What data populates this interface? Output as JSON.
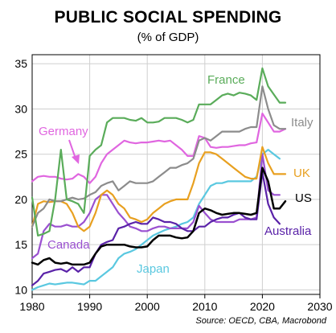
{
  "chart_data": {
    "type": "line",
    "title": "PUBLIC SOCIAL SPENDING",
    "subtitle": "(% of GDP)",
    "source": "Source: OECD, CBA, Macrobond",
    "xlim": [
      1980,
      2030
    ],
    "ylim": [
      9.5,
      36
    ],
    "xticks": [
      "1980",
      "1990",
      "2000",
      "2010",
      "2020",
      "2030"
    ],
    "yticks": [
      "10",
      "15",
      "20",
      "25",
      "30",
      "35"
    ],
    "grid": "both",
    "series": [
      {
        "name": "France",
        "color": "#5aac5a",
        "x": [
          1980,
          1981,
          1982,
          1983,
          1984,
          1985,
          1986,
          1987,
          1988,
          1989,
          1990,
          1991,
          1992,
          1993,
          1994,
          1995,
          1996,
          1997,
          1998,
          1999,
          2000,
          2001,
          2002,
          2003,
          2004,
          2005,
          2006,
          2007,
          2008,
          2009,
          2010,
          2011,
          2012,
          2013,
          2014,
          2015,
          2016,
          2017,
          2018,
          2019,
          2020,
          2021,
          2022,
          2023,
          2024
        ],
        "y": [
          20.2,
          16.0,
          16.2,
          16.5,
          20.0,
          25.5,
          20.0,
          19.8,
          19.5,
          18.5,
          24.8,
          25.5,
          26.0,
          28.5,
          29.0,
          29.0,
          29.0,
          28.8,
          28.7,
          29.0,
          28.5,
          28.5,
          28.6,
          29.0,
          29.0,
          29.0,
          28.8,
          28.5,
          28.8,
          30.5,
          30.5,
          30.5,
          31.0,
          31.5,
          31.7,
          31.5,
          31.8,
          31.7,
          31.5,
          31.0,
          34.5,
          32.5,
          31.6,
          30.7,
          30.7
        ]
      },
      {
        "name": "Italy",
        "color": "#8c8c8c",
        "x": [
          1980,
          1981,
          1982,
          1983,
          1984,
          1985,
          1986,
          1987,
          1988,
          1989,
          1990,
          1991,
          1992,
          1993,
          1994,
          1995,
          1996,
          1997,
          1998,
          1999,
          2000,
          2001,
          2002,
          2003,
          2004,
          2005,
          2006,
          2007,
          2008,
          2009,
          2010,
          2011,
          2012,
          2013,
          2014,
          2015,
          2016,
          2017,
          2018,
          2019,
          2020,
          2021,
          2022,
          2023,
          2024
        ],
        "y": [
          17.0,
          18.5,
          19.0,
          20.0,
          19.8,
          19.8,
          20.0,
          20.2,
          20.0,
          20.1,
          20.5,
          20.8,
          21.5,
          21.8,
          22.0,
          21.0,
          21.5,
          22.0,
          21.8,
          21.8,
          21.8,
          22.0,
          22.5,
          23.0,
          23.5,
          23.5,
          23.8,
          24.0,
          24.5,
          26.5,
          26.8,
          26.5,
          27.0,
          27.5,
          27.5,
          27.5,
          27.5,
          27.8,
          28.0,
          28.0,
          32.5,
          30.0,
          28.2,
          27.8,
          27.8
        ]
      },
      {
        "name": "Germany",
        "color": "#e066e0",
        "x": [
          1980,
          1981,
          1982,
          1983,
          1984,
          1985,
          1986,
          1987,
          1988,
          1989,
          1990,
          1991,
          1992,
          1993,
          1994,
          1995,
          1996,
          1997,
          1998,
          1999,
          2000,
          2001,
          2002,
          2003,
          2004,
          2005,
          2006,
          2007,
          2008,
          2009,
          2010,
          2011,
          2012,
          2013,
          2014,
          2015,
          2016,
          2017,
          2018,
          2019,
          2020,
          2021,
          2022,
          2023,
          2024
        ],
        "y": [
          22.0,
          22.5,
          22.6,
          22.5,
          22.5,
          22.3,
          22.2,
          22.3,
          22.8,
          22.5,
          21.8,
          22.5,
          24.0,
          25.0,
          25.5,
          26.0,
          26.5,
          26.3,
          26.2,
          26.3,
          26.3,
          26.4,
          26.5,
          26.4,
          26.5,
          26.0,
          25.5,
          24.8,
          24.8,
          27.0,
          26.8,
          25.8,
          25.7,
          25.8,
          25.8,
          25.9,
          26.0,
          26.0,
          26.2,
          26.3,
          29.5,
          28.5,
          27.5,
          27.5,
          27.8
        ]
      },
      {
        "name": "UK",
        "color": "#e8a020",
        "x": [
          1980,
          1981,
          1982,
          1983,
          1984,
          1985,
          1986,
          1987,
          1988,
          1989,
          1990,
          1991,
          1992,
          1993,
          1994,
          1995,
          1996,
          1997,
          1998,
          1999,
          2000,
          2001,
          2002,
          2003,
          2004,
          2005,
          2006,
          2007,
          2008,
          2009,
          2010,
          2011,
          2012,
          2013,
          2014,
          2015,
          2016,
          2017,
          2018,
          2019,
          2020,
          2021,
          2022,
          2023,
          2024
        ],
        "y": [
          17.0,
          19.5,
          19.8,
          19.7,
          19.8,
          19.8,
          19.5,
          18.5,
          17.0,
          16.5,
          17.0,
          18.5,
          20.5,
          21.0,
          20.5,
          19.5,
          19.0,
          18.0,
          17.8,
          17.5,
          17.8,
          18.5,
          19.0,
          19.5,
          19.8,
          20.0,
          20.0,
          20.0,
          21.8,
          24.0,
          25.2,
          25.2,
          25.0,
          24.5,
          24.0,
          23.5,
          23.0,
          22.5,
          22.3,
          22.3,
          25.8,
          24.0,
          22.8,
          22.8,
          22.8
        ]
      },
      {
        "name": "US",
        "color": "#000000",
        "x": [
          1980,
          1981,
          1982,
          1983,
          1984,
          1985,
          1986,
          1987,
          1988,
          1989,
          1990,
          1991,
          1992,
          1993,
          1994,
          1995,
          1996,
          1997,
          1998,
          1999,
          2000,
          2001,
          2002,
          2003,
          2004,
          2005,
          2006,
          2007,
          2008,
          2009,
          2010,
          2011,
          2012,
          2013,
          2014,
          2015,
          2016,
          2017,
          2018,
          2019,
          2020,
          2021,
          2022,
          2023,
          2024
        ],
        "y": [
          13.0,
          12.8,
          13.3,
          13.5,
          13.0,
          12.9,
          13.0,
          12.8,
          12.8,
          12.8,
          13.0,
          14.0,
          14.8,
          15.0,
          15.0,
          15.0,
          15.0,
          14.8,
          14.7,
          14.7,
          14.8,
          15.5,
          16.0,
          16.0,
          16.0,
          15.8,
          15.7,
          15.8,
          16.5,
          18.5,
          19.0,
          18.8,
          18.5,
          18.3,
          18.4,
          18.5,
          18.5,
          18.4,
          18.3,
          18.5,
          23.5,
          22.0,
          19.0,
          19.0,
          19.8
        ]
      },
      {
        "name": "Australia",
        "color": "#5a22a8",
        "x": [
          1980,
          1981,
          1982,
          1983,
          1984,
          1985,
          1986,
          1987,
          1988,
          1989,
          1990,
          1991,
          1992,
          1993,
          1994,
          1995,
          1996,
          1997,
          1998,
          1999,
          2000,
          2001,
          2002,
          2003,
          2004,
          2005,
          2006,
          2007,
          2008,
          2009,
          2010,
          2011,
          2012,
          2013,
          2014,
          2015,
          2016,
          2017,
          2018,
          2019,
          2020,
          2021,
          2022,
          2023
        ],
        "y": [
          10.5,
          11.0,
          11.8,
          12.0,
          12.2,
          12.3,
          12.0,
          12.5,
          12.0,
          12.5,
          12.5,
          14.0,
          15.0,
          15.3,
          15.5,
          16.8,
          17.0,
          17.3,
          17.5,
          17.3,
          17.3,
          18.0,
          17.8,
          17.5,
          17.5,
          17.3,
          16.8,
          16.5,
          16.5,
          17.0,
          17.0,
          17.5,
          17.8,
          18.0,
          18.0,
          18.3,
          18.5,
          18.0,
          17.8,
          17.8,
          23.0,
          19.5,
          18.0,
          17.3
        ]
      },
      {
        "name": "Canada",
        "color": "#9a50d0",
        "x": [
          1980,
          1981,
          1982,
          1983,
          1984,
          1985,
          1986,
          1987,
          1988,
          1989,
          1990,
          1991,
          1992,
          1993,
          1994,
          1995,
          1996,
          1997,
          1998,
          1999,
          2000,
          2001,
          2002,
          2003,
          2004,
          2005,
          2006,
          2007,
          2008,
          2009,
          2010,
          2011,
          2012,
          2013,
          2014,
          2015,
          2016,
          2017,
          2018,
          2019,
          2020,
          2021,
          2022,
          2023
        ],
        "y": [
          13.5,
          14.0,
          16.5,
          17.3,
          17.0,
          17.0,
          17.2,
          17.0,
          17.0,
          17.5,
          18.5,
          20.0,
          20.5,
          20.5,
          19.5,
          18.5,
          17.8,
          17.0,
          16.8,
          16.5,
          16.5,
          16.8,
          17.0,
          17.0,
          16.8,
          16.8,
          16.8,
          16.8,
          17.5,
          19.3,
          18.5,
          17.8,
          17.5,
          17.5,
          17.5,
          17.5,
          17.8,
          17.8,
          17.8,
          18.0,
          25.0,
          21.0,
          20.5,
          20.5
        ]
      },
      {
        "name": "Japan",
        "color": "#5ac8e0",
        "x": [
          1980,
          1981,
          1982,
          1983,
          1984,
          1985,
          1986,
          1987,
          1988,
          1989,
          1990,
          1991,
          1992,
          1993,
          1994,
          1995,
          1996,
          1997,
          1998,
          1999,
          2000,
          2001,
          2002,
          2003,
          2004,
          2005,
          2006,
          2007,
          2008,
          2009,
          2010,
          2011,
          2012,
          2013,
          2014,
          2015,
          2016,
          2017,
          2018,
          2019,
          2020,
          2021,
          2022,
          2023
        ],
        "y": [
          10.0,
          10.3,
          10.5,
          10.7,
          10.6,
          10.7,
          10.8,
          10.8,
          10.7,
          10.6,
          11.0,
          11.0,
          11.5,
          12.0,
          12.5,
          13.5,
          14.0,
          14.2,
          14.5,
          15.0,
          15.5,
          16.0,
          16.3,
          16.6,
          16.8,
          17.0,
          17.3,
          17.5,
          18.0,
          19.5,
          20.5,
          21.5,
          21.8,
          21.8,
          22.0,
          22.0,
          22.0,
          22.0,
          22.0,
          22.5,
          25.0,
          25.5,
          25.0,
          24.5
        ]
      }
    ],
    "annotations": [
      "Germany"
    ]
  }
}
